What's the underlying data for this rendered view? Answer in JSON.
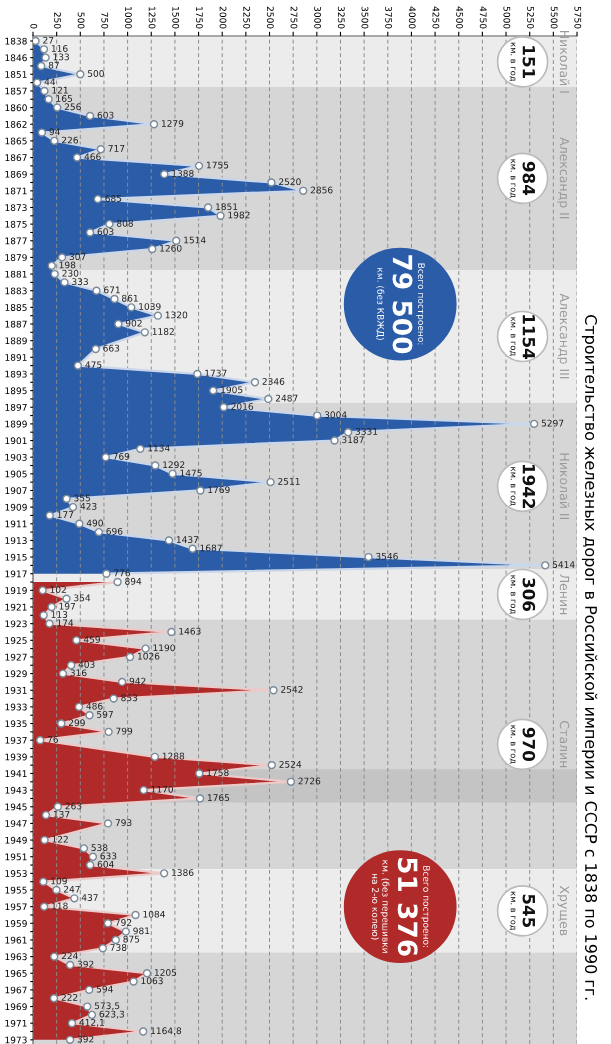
{
  "chart_data": {
    "type": "area",
    "orientation": "horizontal",
    "title": "Строительство железных дорог в Российской империи и СССР с 1838 по 1990 гг.",
    "categories": [
      "1838",
      null,
      "1846",
      null,
      "1851",
      null,
      "1857",
      null,
      "1860",
      null,
      "1862",
      null,
      "1865",
      null,
      "1867",
      null,
      "1869",
      null,
      "1871",
      null,
      "1873",
      null,
      "1875",
      null,
      "1877",
      null,
      "1879",
      null,
      "1881",
      null,
      "1883",
      null,
      "1885",
      null,
      "1887",
      null,
      "1889",
      null,
      "1891",
      null,
      "1893",
      null,
      "1895",
      null,
      "1897",
      null,
      "1899",
      null,
      "1901",
      null,
      "1903",
      null,
      "1905",
      null,
      "1907",
      null,
      "1909",
      null,
      "1911",
      null,
      "1913",
      null,
      "1915",
      null,
      "1917",
      null,
      "1919",
      null,
      "1921",
      null,
      "1923",
      null,
      "1925",
      null,
      "1927",
      null,
      "1929",
      null,
      "1931",
      null,
      "1933",
      null,
      "1935",
      null,
      "1937",
      null,
      "1939",
      null,
      "1941",
      null,
      "1943",
      null,
      "1945",
      null,
      "1947",
      null,
      "1949",
      null,
      "1951",
      null,
      "1953",
      null,
      "1955",
      null,
      "1957",
      null,
      "1959",
      null,
      "1961",
      null,
      "1963",
      null,
      "1965",
      null,
      "1967",
      null,
      "1969",
      null,
      "1971",
      null,
      "1973"
    ],
    "series": [
      {
        "color": "#2b5ca8",
        "values": [
          27,
          116,
          133,
          87,
          500,
          44,
          121,
          165,
          256,
          603,
          1279,
          94,
          226,
          717,
          466,
          1755,
          1388,
          2520,
          2856,
          685,
          1851,
          1982,
          808,
          603,
          1514,
          1260,
          307,
          198,
          230,
          333,
          671,
          861,
          1039,
          1320,
          902,
          1182,
          null,
          663,
          null,
          475,
          1737,
          2346,
          1905,
          2487,
          2016,
          3004,
          5297,
          3331,
          3187,
          1134,
          769,
          1292,
          1475,
          2511,
          1769,
          355,
          423,
          177,
          490,
          696,
          1437,
          1687,
          3546,
          5414,
          776,
          null,
          null,
          null,
          null,
          null,
          null,
          null,
          null,
          null,
          null,
          null,
          null,
          null,
          null,
          null,
          null,
          null,
          null,
          null,
          null,
          null,
          null,
          null,
          null,
          null,
          null,
          null,
          null,
          null,
          null,
          null,
          null,
          null,
          null,
          null,
          null,
          null,
          null,
          null,
          null,
          null,
          null,
          null,
          null,
          null,
          null,
          null,
          null,
          null,
          null,
          null,
          null,
          null,
          null,
          null,
          null
        ],
        "value_labels": [
          "27",
          "116",
          "133",
          "87",
          "500",
          "44",
          "121",
          "165",
          "256",
          "603",
          "1279",
          "94",
          "226",
          "717",
          "466",
          "1755",
          "1388",
          "2520",
          "2856",
          "685",
          "1851",
          "1982",
          "808",
          "603",
          "1514",
          "1260",
          "307",
          "198",
          "230",
          "333",
          "671",
          "861",
          "1039",
          "1320",
          "902",
          "1182",
          null,
          "663",
          null,
          "475",
          "1737",
          "2346",
          "1905",
          "2487",
          "2016",
          "3004",
          "5297",
          "3331",
          "3187",
          "1134",
          "769",
          "1292",
          "1475",
          "2511",
          "1769",
          "355",
          "423",
          "177",
          "490",
          "696",
          "1437",
          "1687",
          "3546",
          "5414",
          "776",
          null,
          null,
          null,
          null,
          null,
          null,
          null,
          null,
          null,
          null,
          null,
          null,
          null,
          null,
          null,
          null,
          null,
          null,
          null,
          null,
          null,
          null,
          null,
          null,
          null,
          null,
          null,
          null,
          null,
          null,
          null,
          null,
          null,
          null,
          null,
          null,
          null,
          null,
          null,
          null,
          null,
          null,
          null,
          null,
          null,
          null,
          null,
          null,
          null,
          null,
          null,
          null,
          null,
          null,
          null,
          null
        ]
      },
      {
        "color": "#b02a2a",
        "values": [
          null,
          null,
          null,
          null,
          null,
          null,
          null,
          null,
          null,
          null,
          null,
          null,
          null,
          null,
          null,
          null,
          null,
          null,
          null,
          null,
          null,
          null,
          null,
          null,
          null,
          null,
          null,
          null,
          null,
          null,
          null,
          null,
          null,
          null,
          null,
          null,
          null,
          null,
          null,
          null,
          null,
          null,
          null,
          null,
          null,
          null,
          null,
          null,
          null,
          null,
          null,
          null,
          null,
          null,
          null,
          null,
          null,
          null,
          null,
          null,
          null,
          null,
          null,
          null,
          null,
          894,
          102,
          354,
          197,
          113,
          174,
          1463,
          459,
          1190,
          1026,
          403,
          316,
          942,
          2542,
          853,
          486,
          597,
          299,
          799,
          76,
          null,
          1288,
          2524,
          1758,
          2726,
          1170,
          1765,
          263,
          137,
          793,
          null,
          122,
          538,
          633,
          604,
          1386,
          109,
          247,
          437,
          118,
          1084,
          792,
          981,
          875,
          738,
          224,
          392,
          1205,
          1063,
          594,
          222,
          573.5,
          623.3,
          412.1,
          1164.8,
          392
        ],
        "value_labels": [
          null,
          null,
          null,
          null,
          null,
          null,
          null,
          null,
          null,
          null,
          null,
          null,
          null,
          null,
          null,
          null,
          null,
          null,
          null,
          null,
          null,
          null,
          null,
          null,
          null,
          null,
          null,
          null,
          null,
          null,
          null,
          null,
          null,
          null,
          null,
          null,
          null,
          null,
          null,
          null,
          null,
          null,
          null,
          null,
          null,
          null,
          null,
          null,
          null,
          null,
          null,
          null,
          null,
          null,
          null,
          null,
          null,
          null,
          null,
          null,
          null,
          null,
          null,
          null,
          null,
          "894",
          "102",
          "354",
          "197",
          "113",
          "174",
          "1463",
          "459",
          "1190",
          "1026",
          "403",
          "316",
          "942",
          "2542",
          "853",
          "486",
          "597",
          "299",
          "799",
          "76",
          null,
          "1288",
          "2524",
          "1758",
          "2726",
          "1170",
          "1765",
          "263",
          "137",
          "793",
          null,
          "122",
          "538",
          "633",
          "604",
          "1386",
          "109",
          "247",
          "437",
          "118",
          "1084",
          "792",
          "981",
          "875",
          "738",
          "224",
          "392",
          "1205",
          "1063",
          "594",
          "222",
          "573,5",
          "623,3",
          "412,1",
          "1164,8",
          "392"
        ]
      }
    ],
    "xlim": [
      0,
      5750
    ],
    "xticks": [
      0,
      250,
      500,
      750,
      1000,
      1250,
      1500,
      1750,
      2000,
      2250,
      2500,
      2750,
      3000,
      3250,
      3500,
      3750,
      4000,
      4250,
      4500,
      4750,
      5000,
      5250,
      5500,
      5750
    ],
    "grid": "x",
    "marker": "circle",
    "bands": [
      {
        "axis": "y",
        "from": "1838",
        "to": "1857",
        "label": "Николай I",
        "color": "#ececec"
      },
      {
        "axis": "y",
        "from": "1857",
        "to": "1881",
        "label": "Александр II",
        "color": "#d6d6d6"
      },
      {
        "axis": "y",
        "from": "1881",
        "to": "1897",
        "label": "Александр III",
        "color": "#ececec"
      },
      {
        "axis": "y",
        "from": "1897",
        "to": "1917",
        "label": "Николай II",
        "color": "#d6d6d6"
      },
      {
        "axis": "y",
        "from": "1917",
        "to": "1923",
        "label": "Ленин",
        "color": "#ececec"
      },
      {
        "axis": "y",
        "from": "1923",
        "to": "1953",
        "label": "Сталин",
        "color": "#d6d6d6"
      },
      {
        "axis": "y",
        "from": "1941",
        "to": "1945",
        "color": "#c4c4c4"
      },
      {
        "axis": "y",
        "from": "1953",
        "to": "1963",
        "label": "Хрущев",
        "color": "#ececec"
      },
      {
        "axis": "y",
        "from": "1963",
        "to": "1973",
        "color": "#d6d6d6"
      }
    ],
    "annotations": [
      "151\nкм. в год",
      "984\nкм. в год",
      "1154\nкм. в год",
      "1942\nкм. в год",
      "306\nкм. в год",
      "970\nкм. в год",
      "545\nкм. в год",
      "Всего построено:\n79 500\nкм. (без КВЖД)",
      "Всего построено:\n51 376\nкм. (без перешивки\nна 2-ю колею)"
    ]
  }
}
